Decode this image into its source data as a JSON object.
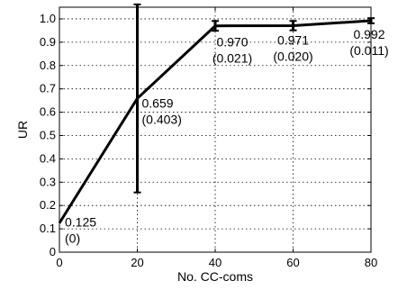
{
  "chart_data": {
    "type": "line",
    "xlabel": "No. CC-coms",
    "ylabel": "UR",
    "xlim": [
      0,
      80
    ],
    "ylim": [
      0,
      1.05
    ],
    "grid": true,
    "x_ticks": [
      "0",
      "20",
      "40",
      "60",
      "80"
    ],
    "y_ticks": [
      "0",
      "0.1",
      "0.2",
      "0.3",
      "0.4",
      "0.5",
      "0.6",
      "0.7",
      "0.8",
      "0.9",
      "1.0"
    ],
    "series": [
      {
        "x": [
          0,
          20,
          40,
          60,
          80
        ],
        "y": [
          0.125,
          0.659,
          0.97,
          0.971,
          0.992
        ],
        "error": [
          0,
          0.403,
          0.021,
          0.02,
          0.011
        ],
        "value_labels": [
          "0.125",
          "0.659",
          "0.970",
          "0.971",
          "0.992"
        ],
        "error_labels": [
          "(0)",
          "(0.403)",
          "(0.021)",
          "(0.020)",
          "(0.011)"
        ]
      }
    ]
  }
}
